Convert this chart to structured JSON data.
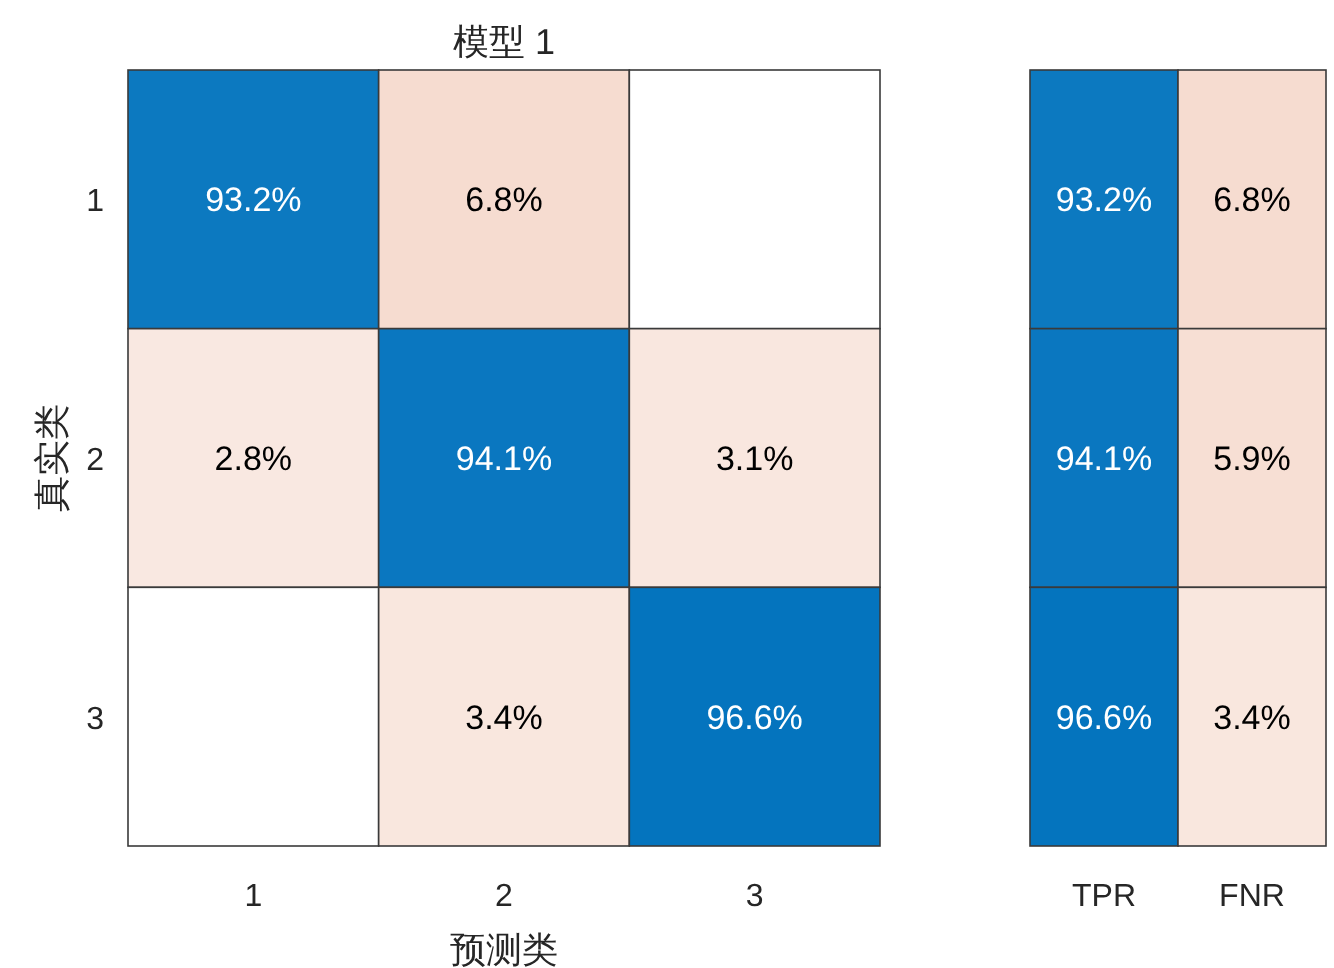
{
  "chart_data": [
    {
      "type": "heatmap",
      "title": "模型 1",
      "xlabel": "预测类",
      "ylabel": "真实类",
      "categories": [
        "1",
        "2",
        "3"
      ],
      "y_categories": [
        "1",
        "2",
        "3"
      ],
      "cells": [
        [
          93.2,
          6.8,
          null
        ],
        [
          2.8,
          94.1,
          3.1
        ],
        [
          null,
          3.4,
          96.6
        ]
      ],
      "cell_labels": [
        [
          "93.2%",
          "6.8%",
          null
        ],
        [
          "2.8%",
          "94.1%",
          "3.1%"
        ],
        [
          null,
          "3.4%",
          "96.6%"
        ]
      ]
    },
    {
      "type": "heatmap",
      "categories": [
        "TPR",
        "FNR"
      ],
      "y_categories": [
        null,
        null,
        null
      ],
      "tick_labels": "x",
      "cells": [
        [
          93.2,
          6.8
        ],
        [
          94.1,
          5.9
        ],
        [
          96.6,
          3.4
        ]
      ],
      "cell_labels": [
        [
          "93.2%",
          "6.8%"
        ],
        [
          "94.1%",
          "5.9%"
        ],
        [
          "96.6%",
          "3.4%"
        ]
      ]
    }
  ]
}
